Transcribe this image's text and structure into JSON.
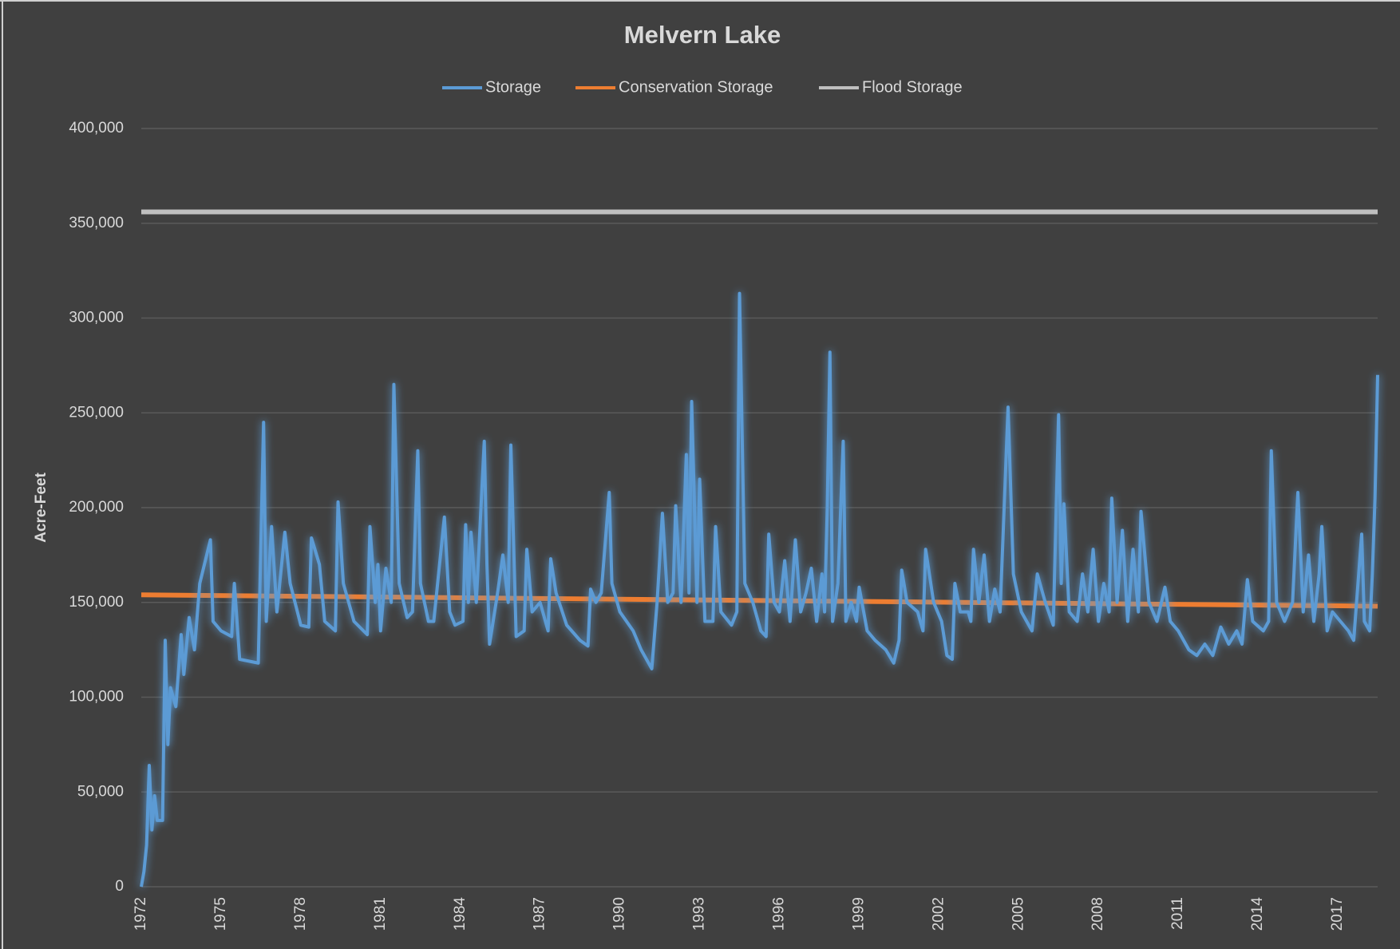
{
  "chart_data": {
    "type": "line",
    "title": "Melvern Lake",
    "y_axis_label": "Acre-Feet",
    "legend": "top",
    "grid": true,
    "xlim": [
      1972,
      2018.5
    ],
    "xticks": [
      1972,
      1975,
      1978,
      1981,
      1984,
      1987,
      1990,
      1993,
      1996,
      1999,
      2002,
      2005,
      2008,
      2011,
      2014,
      2017
    ],
    "ylim": [
      0,
      400000
    ],
    "yticks": [
      0,
      {
        "value": 50000,
        "label": "50,000"
      },
      {
        "value": 100000,
        "label": "100,000"
      },
      {
        "value": 150000,
        "label": "150,000"
      },
      {
        "value": 200000,
        "label": "200,000"
      },
      {
        "value": 250000,
        "label": "250,000"
      },
      {
        "value": 300000,
        "label": "300,000"
      },
      {
        "value": 350000,
        "label": "350,000"
      },
      {
        "value": 400000,
        "label": "400,000"
      }
    ],
    "series": [
      {
        "name": "Storage",
        "color": "#5b9bd5",
        "x": [
          1972.0,
          1972.1,
          1972.2,
          1972.3,
          1972.4,
          1972.5,
          1972.6,
          1972.8,
          1972.9,
          1973.0,
          1973.1,
          1973.3,
          1973.5,
          1973.6,
          1973.8,
          1974.0,
          1974.2,
          1974.6,
          1974.7,
          1975.0,
          1975.4,
          1975.5,
          1975.7,
          1976.4,
          1976.6,
          1976.7,
          1976.9,
          1977.1,
          1977.4,
          1977.6,
          1978.0,
          1978.3,
          1978.4,
          1978.7,
          1978.9,
          1979.3,
          1979.4,
          1979.6,
          1980.0,
          1980.5,
          1980.6,
          1980.8,
          1980.9,
          1981.0,
          1981.2,
          1981.4,
          1981.5,
          1981.7,
          1982.0,
          1982.2,
          1982.4,
          1982.5,
          1982.8,
          1983.0,
          1983.4,
          1983.6,
          1983.8,
          1984.1,
          1984.2,
          1984.3,
          1984.4,
          1984.6,
          1984.9,
          1985.0,
          1985.1,
          1985.4,
          1985.6,
          1985.8,
          1985.9,
          1986.1,
          1986.4,
          1986.5,
          1986.7,
          1987.0,
          1987.3,
          1987.4,
          1987.6,
          1988.0,
          1988.5,
          1988.8,
          1988.9,
          1989.1,
          1989.3,
          1989.6,
          1989.7,
          1990.0,
          1990.5,
          1990.8,
          1991.2,
          1991.4,
          1991.6,
          1991.8,
          1992.0,
          1992.1,
          1992.3,
          1992.5,
          1992.6,
          1992.7,
          1992.9,
          1993.0,
          1993.2,
          1993.5,
          1993.6,
          1993.8,
          1994.2,
          1994.4,
          1994.5,
          1994.7,
          1995.0,
          1995.3,
          1995.5,
          1995.6,
          1995.8,
          1996.0,
          1996.2,
          1996.4,
          1996.6,
          1996.8,
          1997.0,
          1997.2,
          1997.4,
          1997.6,
          1997.7,
          1997.8,
          1997.9,
          1998.0,
          1998.2,
          1998.4,
          1998.5,
          1998.7,
          1998.9,
          1999.0,
          1999.3,
          1999.6,
          2000.0,
          2000.3,
          2000.5,
          2000.6,
          2000.8,
          2001.2,
          2001.4,
          2001.5,
          2001.8,
          2002.1,
          2002.3,
          2002.5,
          2002.6,
          2002.8,
          2003.1,
          2003.2,
          2003.3,
          2003.5,
          2003.7,
          2003.9,
          2004.1,
          2004.3,
          2004.6,
          2004.8,
          2005.1,
          2005.5,
          2005.7,
          2006.0,
          2006.3,
          2006.5,
          2006.6,
          2006.7,
          2006.9,
          2007.2,
          2007.4,
          2007.6,
          2007.8,
          2008.0,
          2008.2,
          2008.4,
          2008.5,
          2008.7,
          2008.9,
          2009.1,
          2009.3,
          2009.5,
          2009.6,
          2009.9,
          2010.2,
          2010.5,
          2010.7,
          2011.0,
          2011.4,
          2011.7,
          2012.0,
          2012.3,
          2012.6,
          2012.9,
          2013.2,
          2013.4,
          2013.6,
          2013.8,
          2014.2,
          2014.4,
          2014.5,
          2014.7,
          2015.0,
          2015.3,
          2015.5,
          2015.7,
          2015.9,
          2016.1,
          2016.3,
          2016.4,
          2016.6,
          2016.8,
          2017.1,
          2017.4,
          2017.6,
          2017.9,
          2018.0,
          2018.2,
          2018.3,
          2018.4,
          2018.5
        ],
        "values": [
          0,
          8000,
          22000,
          64000,
          30000,
          48000,
          35000,
          35000,
          130000,
          75000,
          105000,
          95000,
          133000,
          112000,
          142000,
          125000,
          160000,
          183000,
          140000,
          135000,
          132000,
          160000,
          120000,
          118000,
          245000,
          140000,
          190000,
          145000,
          187000,
          160000,
          138000,
          137000,
          184000,
          170000,
          140000,
          135000,
          203000,
          160000,
          140000,
          133000,
          190000,
          150000,
          170000,
          135000,
          168000,
          150000,
          265000,
          160000,
          142000,
          145000,
          230000,
          160000,
          140000,
          140000,
          195000,
          145000,
          138000,
          140000,
          191000,
          150000,
          187000,
          150000,
          235000,
          170000,
          128000,
          155000,
          175000,
          150000,
          233000,
          132000,
          135000,
          178000,
          145000,
          150000,
          135000,
          173000,
          155000,
          138000,
          130000,
          127000,
          157000,
          150000,
          155000,
          208000,
          160000,
          145000,
          135000,
          125000,
          115000,
          150000,
          197000,
          150000,
          155000,
          201000,
          150000,
          228000,
          155000,
          256000,
          150000,
          215000,
          140000,
          140000,
          190000,
          145000,
          138000,
          145000,
          313000,
          160000,
          150000,
          135000,
          132000,
          186000,
          150000,
          145000,
          172000,
          140000,
          183000,
          145000,
          155000,
          168000,
          140000,
          165000,
          145000,
          200000,
          282000,
          140000,
          160000,
          235000,
          140000,
          150000,
          140000,
          158000,
          135000,
          130000,
          125000,
          118000,
          130000,
          167000,
          150000,
          145000,
          135000,
          178000,
          150000,
          140000,
          122000,
          120000,
          160000,
          145000,
          145000,
          140000,
          178000,
          150000,
          175000,
          140000,
          157000,
          145000,
          253000,
          165000,
          145000,
          135000,
          165000,
          150000,
          138000,
          249000,
          160000,
          202000,
          145000,
          140000,
          165000,
          145000,
          178000,
          140000,
          160000,
          145000,
          205000,
          150000,
          188000,
          140000,
          178000,
          145000,
          198000,
          150000,
          140000,
          158000,
          140000,
          135000,
          125000,
          122000,
          128000,
          122000,
          137000,
          128000,
          135000,
          128000,
          162000,
          140000,
          135000,
          140000,
          230000,
          150000,
          140000,
          150000,
          208000,
          145000,
          175000,
          140000,
          165000,
          190000,
          135000,
          145000,
          140000,
          135000,
          130000,
          186000,
          140000,
          135000,
          165000,
          205000,
          270000
        ]
      },
      {
        "name": "Conservation Storage",
        "color": "#ed7d31",
        "x": [
          1972,
          2018.5
        ],
        "values": [
          154000,
          148000
        ]
      },
      {
        "name": "Flood Storage",
        "color": "#bfbfbf",
        "x": [
          1972,
          2018.5
        ],
        "values": [
          356000,
          356000
        ]
      }
    ]
  }
}
